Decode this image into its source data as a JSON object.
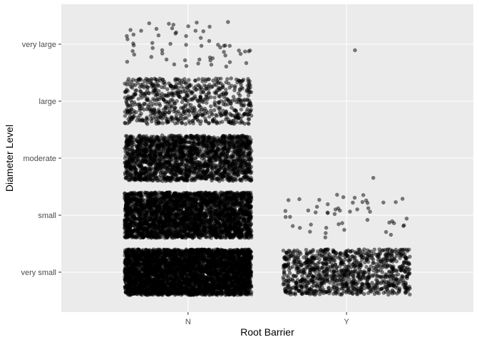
{
  "colors": {
    "panel_background": "#EBEBEB",
    "gridline": "#FFFFFF",
    "point": "#000000",
    "tick_text": "#4D4D4D",
    "tick_mark": "#333333"
  },
  "chart_data": {
    "type": "scatter",
    "subtype": "jitter",
    "title": "",
    "xlabel": "Root Barrier",
    "ylabel": "Diameter Level",
    "x_categories": [
      "N",
      "Y"
    ],
    "y_categories": [
      "very small",
      "small",
      "moderate",
      "large",
      "very large"
    ],
    "grid": true,
    "legend": "none",
    "point_alpha": 0.5,
    "series": [
      {
        "x": "N",
        "y": "very small",
        "approx_count": 4000
      },
      {
        "x": "N",
        "y": "small",
        "approx_count": 3000
      },
      {
        "x": "N",
        "y": "moderate",
        "approx_count": 2000
      },
      {
        "x": "N",
        "y": "large",
        "approx_count": 700
      },
      {
        "x": "N",
        "y": "very large",
        "approx_count": 60
      },
      {
        "x": "Y",
        "y": "very small",
        "approx_count": 1000
      },
      {
        "x": "Y",
        "y": "small",
        "approx_count": 50
      },
      {
        "x": "Y",
        "y": "moderate",
        "approx_count": 1
      },
      {
        "x": "Y",
        "y": "very large",
        "approx_count": 1
      }
    ]
  }
}
